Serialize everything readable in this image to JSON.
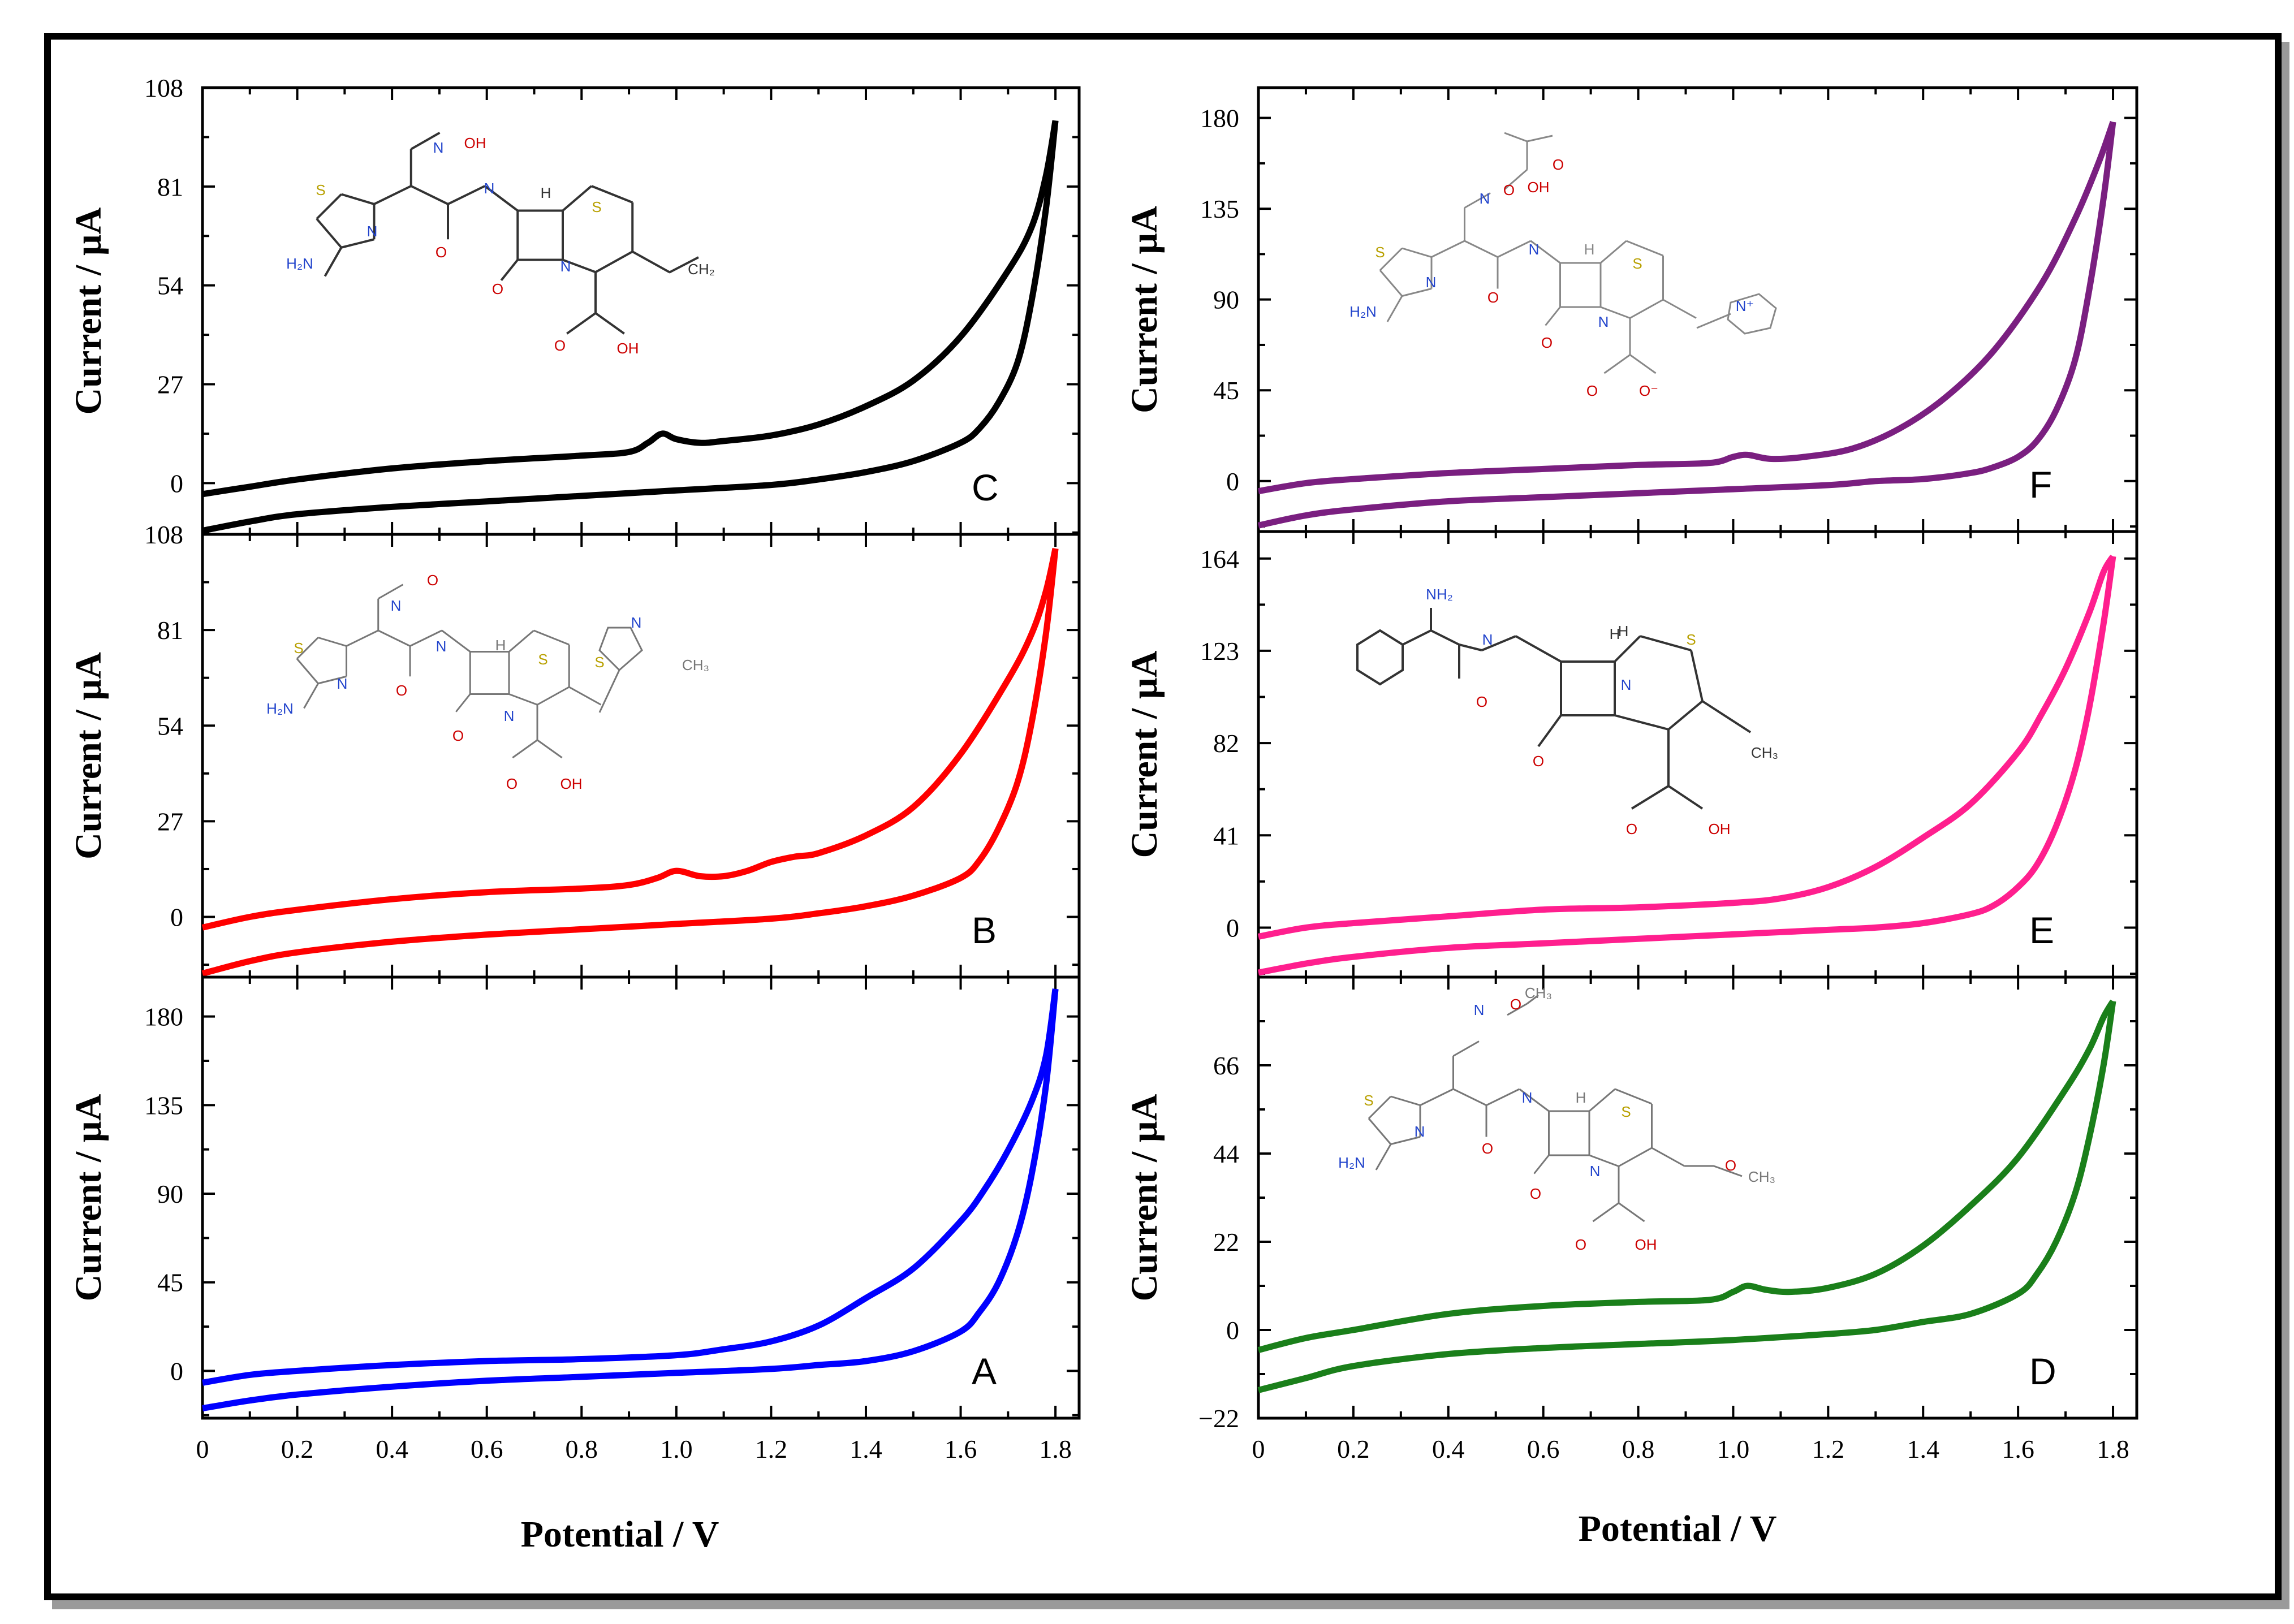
{
  "figure": {
    "x_axis_title": "Potential / V",
    "y_axis_title": "Current / µA"
  },
  "chart_data": [
    {
      "id": "C",
      "type": "line",
      "panel_label": "C",
      "color": "#000000",
      "ylabel": "Current / µA",
      "xlabel": "",
      "xlim": [
        0,
        1.85
      ],
      "ylim": [
        -14,
        108
      ],
      "yticks": [
        0,
        27,
        54,
        81,
        108
      ],
      "ytick_labels": [
        "0",
        "27",
        "54",
        "81",
        "108"
      ],
      "xticks": [],
      "xtick_labels": [],
      "molecule": "cefdinir",
      "mol_labels": [
        "N",
        "OH",
        "S",
        "N",
        "H₂N",
        "O",
        "N",
        "H",
        "S",
        "O",
        "N",
        "CH₂",
        "O",
        "OH"
      ],
      "series": [
        {
          "name": "forward",
          "x": [
            0,
            0.1,
            0.2,
            0.4,
            0.6,
            0.8,
            0.9,
            0.94,
            0.97,
            1.0,
            1.05,
            1.1,
            1.2,
            1.3,
            1.4,
            1.5,
            1.6,
            1.7,
            1.75,
            1.78,
            1.8
          ],
          "y": [
            -3,
            -1,
            1,
            4,
            6,
            7.5,
            8.5,
            11,
            13.5,
            12,
            11,
            11.5,
            13,
            16,
            21,
            28,
            40,
            58,
            70,
            84,
            99
          ]
        },
        {
          "name": "reverse",
          "x": [
            1.8,
            1.78,
            1.75,
            1.72,
            1.68,
            1.64,
            1.6,
            1.5,
            1.4,
            1.3,
            1.2,
            1.0,
            0.8,
            0.6,
            0.4,
            0.2,
            0.1,
            0
          ],
          "y": [
            99,
            75,
            50,
            33,
            22,
            15,
            11,
            6,
            3,
            1,
            -0.5,
            -2,
            -3.5,
            -5,
            -6.5,
            -8.5,
            -10.5,
            -13
          ]
        }
      ]
    },
    {
      "id": "B",
      "type": "line",
      "panel_label": "B",
      "color": "#ff0000",
      "ylabel": "Current / µA",
      "xlabel": "",
      "xlim": [
        0,
        1.85
      ],
      "ylim": [
        -17,
        108
      ],
      "yticks": [
        0,
        27,
        54,
        81,
        108
      ],
      "ytick_labels": [
        "0",
        "27",
        "54",
        "81",
        "108"
      ],
      "xticks": [],
      "xtick_labels": [],
      "molecule": "cefditoren",
      "mol_labels": [
        "N",
        "O",
        "S",
        "N",
        "H₂N",
        "O",
        "N",
        "H",
        "S",
        "O",
        "N",
        "O",
        "OH",
        "S",
        "N",
        "CH₃"
      ],
      "series": [
        {
          "name": "forward",
          "x": [
            0,
            0.1,
            0.2,
            0.4,
            0.6,
            0.8,
            0.9,
            0.96,
            1.0,
            1.05,
            1.1,
            1.15,
            1.2,
            1.25,
            1.3,
            1.4,
            1.5,
            1.6,
            1.7,
            1.75,
            1.78,
            1.8
          ],
          "y": [
            -3,
            0,
            2,
            5,
            7,
            8,
            9,
            11,
            13,
            11.5,
            11.5,
            13,
            15.5,
            17,
            18,
            23,
            31,
            46,
            67,
            80,
            92,
            104
          ]
        },
        {
          "name": "reverse",
          "x": [
            1.8,
            1.78,
            1.75,
            1.72,
            1.68,
            1.64,
            1.6,
            1.5,
            1.4,
            1.3,
            1.2,
            1.0,
            0.8,
            0.6,
            0.4,
            0.2,
            0.1,
            0
          ],
          "y": [
            104,
            80,
            55,
            38,
            25,
            16,
            11,
            6,
            3,
            1,
            -0.5,
            -2,
            -3.5,
            -5,
            -7,
            -10,
            -12.5,
            -16
          ]
        }
      ]
    },
    {
      "id": "A",
      "type": "line",
      "panel_label": "A",
      "color": "#0000ff",
      "ylabel": "Current / µA",
      "xlabel": "Potential / V",
      "xlim": [
        0,
        1.85
      ],
      "ylim": [
        -24,
        200
      ],
      "yticks": [
        0,
        45,
        90,
        135,
        180
      ],
      "ytick_labels": [
        "0",
        "45",
        "90",
        "135",
        "180"
      ],
      "xticks": [
        0,
        0.2,
        0.4,
        0.6,
        0.8,
        1.0,
        1.2,
        1.4,
        1.6,
        1.8
      ],
      "xtick_labels": [
        "0",
        "0.2",
        "0.4",
        "0.6",
        "0.8",
        "1.0",
        "1.2",
        "1.4",
        "1.6",
        "1.8"
      ],
      "molecule": "",
      "mol_labels": [],
      "series": [
        {
          "name": "forward",
          "x": [
            0,
            0.1,
            0.2,
            0.4,
            0.6,
            0.8,
            1.0,
            1.1,
            1.2,
            1.3,
            1.4,
            1.5,
            1.6,
            1.65,
            1.7,
            1.75,
            1.78,
            1.8
          ],
          "y": [
            -6,
            -2,
            0,
            3,
            5,
            6,
            8,
            11,
            15,
            23,
            37,
            52,
            76,
            92,
            112,
            137,
            160,
            194
          ]
        },
        {
          "name": "reverse",
          "x": [
            1.8,
            1.78,
            1.75,
            1.72,
            1.68,
            1.64,
            1.6,
            1.5,
            1.4,
            1.3,
            1.2,
            1.0,
            0.8,
            0.6,
            0.4,
            0.2,
            0.1,
            0
          ],
          "y": [
            194,
            145,
            100,
            70,
            45,
            30,
            20,
            10,
            5,
            3,
            1,
            -1,
            -3,
            -5,
            -8,
            -12,
            -15,
            -19
          ]
        }
      ]
    },
    {
      "id": "F",
      "type": "line",
      "panel_label": "F",
      "color": "#7a1f80",
      "ylabel": "Current / µA",
      "xlabel": "",
      "xlim": [
        0,
        1.85
      ],
      "ylim": [
        -25,
        195
      ],
      "yticks": [
        0,
        45,
        90,
        135,
        180
      ],
      "ytick_labels": [
        "0",
        "45",
        "90",
        "135",
        "180"
      ],
      "xticks": [],
      "xtick_labels": [],
      "molecule": "ceftazidime",
      "mol_labels": [
        "N",
        "O",
        "O",
        "OH",
        "S",
        "N",
        "H₂N",
        "O",
        "N",
        "H",
        "S",
        "O",
        "N",
        "N⁺",
        "O",
        "O⁻"
      ],
      "series": [
        {
          "name": "forward",
          "x": [
            0,
            0.1,
            0.2,
            0.4,
            0.6,
            0.8,
            0.95,
            1.0,
            1.03,
            1.08,
            1.15,
            1.25,
            1.35,
            1.45,
            1.55,
            1.65,
            1.72,
            1.77,
            1.8
          ],
          "y": [
            -5,
            -1,
            1,
            4,
            6,
            8,
            9,
            12,
            13,
            11,
            12,
            16,
            26,
            42,
            65,
            98,
            130,
            158,
            178
          ]
        },
        {
          "name": "reverse",
          "x": [
            1.8,
            1.78,
            1.75,
            1.72,
            1.68,
            1.64,
            1.6,
            1.55,
            1.5,
            1.4,
            1.3,
            1.2,
            1.0,
            0.8,
            0.6,
            0.4,
            0.2,
            0.1,
            0
          ],
          "y": [
            178,
            140,
            95,
            60,
            35,
            20,
            12,
            7,
            4,
            1,
            0,
            -2,
            -4,
            -6,
            -8,
            -10,
            -14,
            -17,
            -22
          ]
        }
      ]
    },
    {
      "id": "E",
      "type": "line",
      "panel_label": "E",
      "color": "#ff1f8e",
      "ylabel": "Current / µA",
      "xlabel": "",
      "xlim": [
        0,
        1.85
      ],
      "ylim": [
        -22,
        176
      ],
      "yticks": [
        0,
        41,
        82,
        123,
        164
      ],
      "ytick_labels": [
        "0",
        "41",
        "82",
        "123",
        "164"
      ],
      "xticks": [],
      "xtick_labels": [],
      "molecule": "cephalexin",
      "mol_labels": [
        "NH₂",
        "N",
        "H",
        "O",
        "H",
        "S",
        "O",
        "N",
        "CH₃",
        "O",
        "OH"
      ],
      "series": [
        {
          "name": "forward",
          "x": [
            0,
            0.1,
            0.2,
            0.4,
            0.6,
            0.8,
            1.0,
            1.1,
            1.2,
            1.3,
            1.4,
            1.5,
            1.6,
            1.65,
            1.7,
            1.75,
            1.78,
            1.8
          ],
          "y": [
            -4,
            0,
            2,
            5,
            8,
            9,
            11,
            13,
            18,
            27,
            40,
            55,
            78,
            95,
            115,
            140,
            158,
            165
          ]
        },
        {
          "name": "reverse",
          "x": [
            1.8,
            1.78,
            1.75,
            1.72,
            1.68,
            1.64,
            1.6,
            1.55,
            1.5,
            1.4,
            1.3,
            1.2,
            1.0,
            0.8,
            0.6,
            0.4,
            0.2,
            0.1,
            0
          ],
          "y": [
            165,
            135,
            98,
            70,
            45,
            28,
            18,
            10,
            6,
            2,
            0,
            -1,
            -3,
            -5,
            -7,
            -9,
            -13,
            -16,
            -20
          ]
        }
      ]
    },
    {
      "id": "D",
      "type": "line",
      "panel_label": "D",
      "color": "#1a7f1a",
      "ylabel": "Current / µA",
      "xlabel": "Potential / V",
      "xlim": [
        0,
        1.85
      ],
      "ylim": [
        -22,
        88
      ],
      "yticks": [
        -22,
        0,
        22,
        44,
        66
      ],
      "ytick_labels": [
        "−22",
        "0",
        "22",
        "44",
        "66"
      ],
      "xticks": [
        0,
        0.2,
        0.4,
        0.6,
        0.8,
        1.0,
        1.2,
        1.4,
        1.6,
        1.8
      ],
      "xtick_labels": [
        "0",
        "0.2",
        "0.4",
        "0.6",
        "0.8",
        "1.0",
        "1.2",
        "1.4",
        "1.6",
        "1.8"
      ],
      "molecule": "cefpodoxime",
      "mol_labels": [
        "N",
        "O",
        "CH₃",
        "S",
        "N",
        "H₂N",
        "O",
        "N",
        "H",
        "S",
        "O",
        "N",
        "O",
        "CH₃",
        "O",
        "OH"
      ],
      "series": [
        {
          "name": "forward",
          "x": [
            0,
            0.1,
            0.2,
            0.4,
            0.6,
            0.8,
            0.95,
            1.0,
            1.03,
            1.07,
            1.12,
            1.2,
            1.3,
            1.4,
            1.5,
            1.6,
            1.7,
            1.75,
            1.78,
            1.8
          ],
          "y": [
            -5,
            -2,
            0,
            4,
            6,
            7,
            7.5,
            9.5,
            11,
            10,
            9.5,
            10.5,
            14,
            21,
            31,
            43,
            60,
            70,
            78,
            82
          ]
        },
        {
          "name": "reverse",
          "x": [
            1.8,
            1.78,
            1.75,
            1.72,
            1.68,
            1.64,
            1.6,
            1.5,
            1.4,
            1.3,
            1.2,
            1.0,
            0.8,
            0.6,
            0.4,
            0.2,
            0.1,
            0
          ],
          "y": [
            82,
            66,
            48,
            34,
            22,
            14,
            9,
            4,
            2,
            0,
            -1,
            -2.5,
            -3.5,
            -4.5,
            -6,
            -9,
            -12,
            -15
          ]
        }
      ]
    }
  ]
}
